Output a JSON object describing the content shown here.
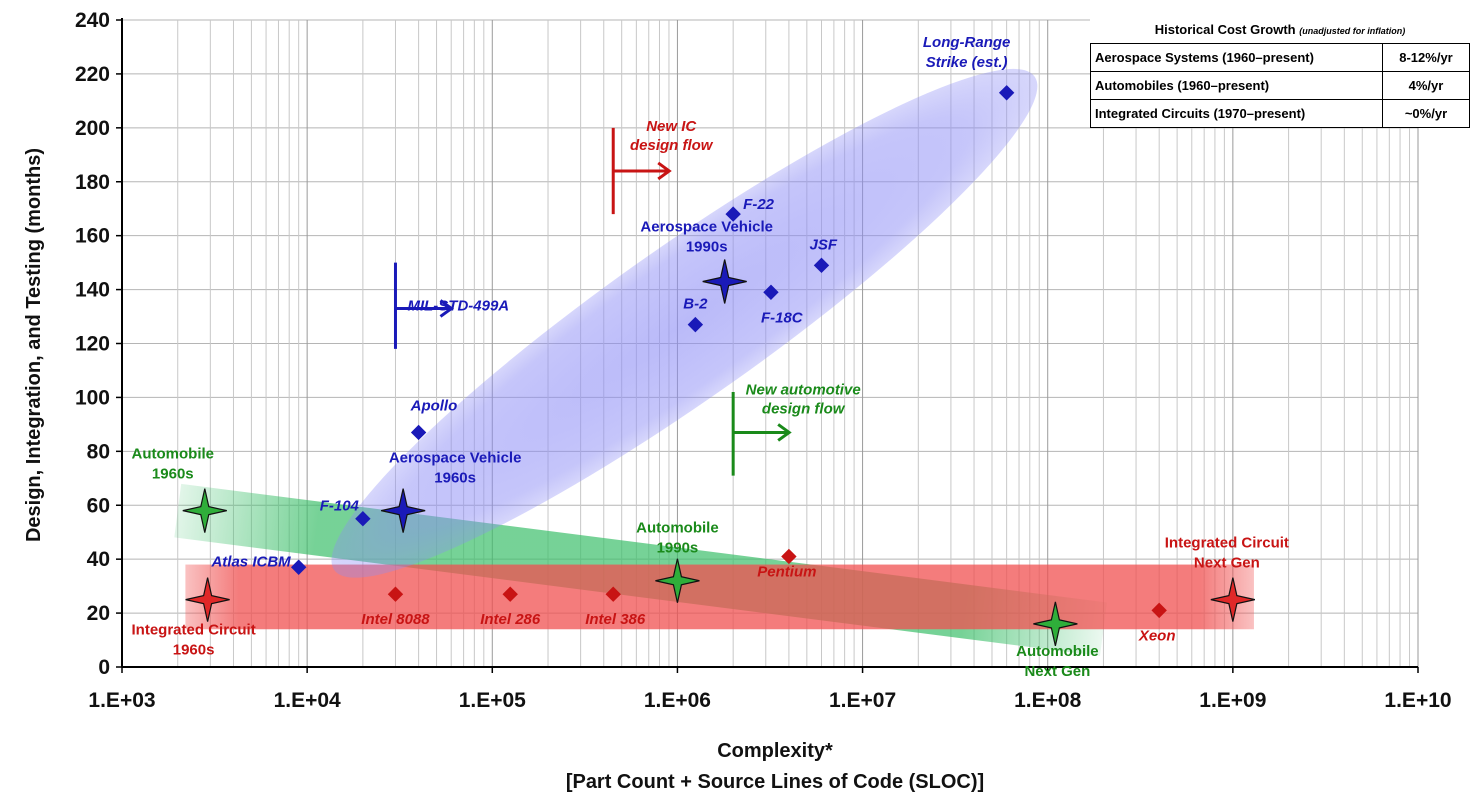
{
  "chart_data": {
    "type": "scatter",
    "title": "",
    "xlabel": "Complexity*",
    "xlabel_sub": "[Part Count + Source Lines of Code (SLOC)]",
    "ylabel": "Design, Integration, and Testing (months)",
    "xscale": "log",
    "xlim": [
      1000,
      10000000000
    ],
    "ylim": [
      0,
      240
    ],
    "x_ticks": [
      "1.E+03",
      "1.E+04",
      "1.E+05",
      "1.E+06",
      "1.E+07",
      "1.E+08",
      "1.E+09",
      "1.E+10"
    ],
    "y_ticks": [
      "0",
      "20",
      "40",
      "60",
      "80",
      "100",
      "120",
      "140",
      "160",
      "180",
      "200",
      "220",
      "240"
    ],
    "grid": true,
    "colors": {
      "aerospace": "#1a1ab8",
      "automobile": "#1a8a1a",
      "ic": "#c81414",
      "ellipse": "#7b7bef",
      "auto_band": "#3cbf6a",
      "ic_band": "#f05050"
    },
    "points": [
      {
        "name": "Atlas ICBM",
        "x": 9000,
        "y": 37,
        "group": "aerospace"
      },
      {
        "name": "F-104",
        "x": 20000,
        "y": 55,
        "group": "aerospace"
      },
      {
        "name": "Apollo",
        "x": 40000,
        "y": 87,
        "group": "aerospace"
      },
      {
        "name": "B-2",
        "x": 1250000,
        "y": 127,
        "group": "aerospace"
      },
      {
        "name": "F-22",
        "x": 2000000,
        "y": 168,
        "group": "aerospace"
      },
      {
        "name": "F-18C",
        "x": 3200000,
        "y": 139,
        "group": "aerospace"
      },
      {
        "name": "JSF",
        "x": 6000000,
        "y": 149,
        "group": "aerospace"
      },
      {
        "name": "Long-Range",
        "name2": "Strike (est.)",
        "x": 60000000,
        "y": 213,
        "group": "aerospace"
      },
      {
        "name": "Intel 8088",
        "x": 30000,
        "y": 27,
        "group": "ic"
      },
      {
        "name": "Intel 286",
        "x": 125000,
        "y": 27,
        "group": "ic"
      },
      {
        "name": "Intel 386",
        "x": 450000,
        "y": 27,
        "group": "ic"
      },
      {
        "name": "Pentium",
        "x": 4000000,
        "y": 41,
        "group": "ic"
      },
      {
        "name": "Xeon",
        "x": 400000000,
        "y": 21,
        "group": "ic"
      }
    ],
    "stars": [
      {
        "name": "Aerospace Vehicle",
        "name2": "1960s",
        "x": 33000,
        "y": 58,
        "group": "aerospace"
      },
      {
        "name": "Aerospace Vehicle",
        "name2": "1990s",
        "x": 1800000,
        "y": 143,
        "group": "aerospace"
      },
      {
        "name": "Automobile",
        "name2": "1960s",
        "x": 2800,
        "y": 58,
        "group": "automobile"
      },
      {
        "name": "Automobile",
        "name2": "1990s",
        "x": 1000000,
        "y": 32,
        "group": "automobile"
      },
      {
        "name": "Automobile",
        "name2": "Next Gen",
        "x": 110000000,
        "y": 16,
        "group": "automobile"
      },
      {
        "name": "Integrated Circuit",
        "name2": "1960s",
        "x": 2900,
        "y": 25,
        "group": "ic"
      },
      {
        "name": "Integrated Circuit",
        "name2": "Next Gen",
        "x": 1000000000,
        "y": 25,
        "group": "ic"
      }
    ],
    "annotations": [
      {
        "text": "MIL-STD-499A",
        "group": "aerospace",
        "x": 30000,
        "y": 140
      },
      {
        "text": "New IC",
        "text2": "design flow",
        "group": "ic",
        "x": 450000,
        "y": 180
      },
      {
        "text": "New automotive",
        "text2": "design flow",
        "group": "automobile",
        "x": 2000000,
        "y": 87
      }
    ]
  },
  "legend_table": {
    "title": "Historical Cost Growth",
    "title_note": "(unadjusted for inflation)",
    "rows": [
      {
        "label": "Aerospace Systems  (1960–present)",
        "rate": "8-12%/yr"
      },
      {
        "label": "Automobiles (1960–present)",
        "rate": "4%/yr"
      },
      {
        "label": "Integrated Circuits (1970–present)",
        "rate": "~0%/yr"
      }
    ]
  }
}
